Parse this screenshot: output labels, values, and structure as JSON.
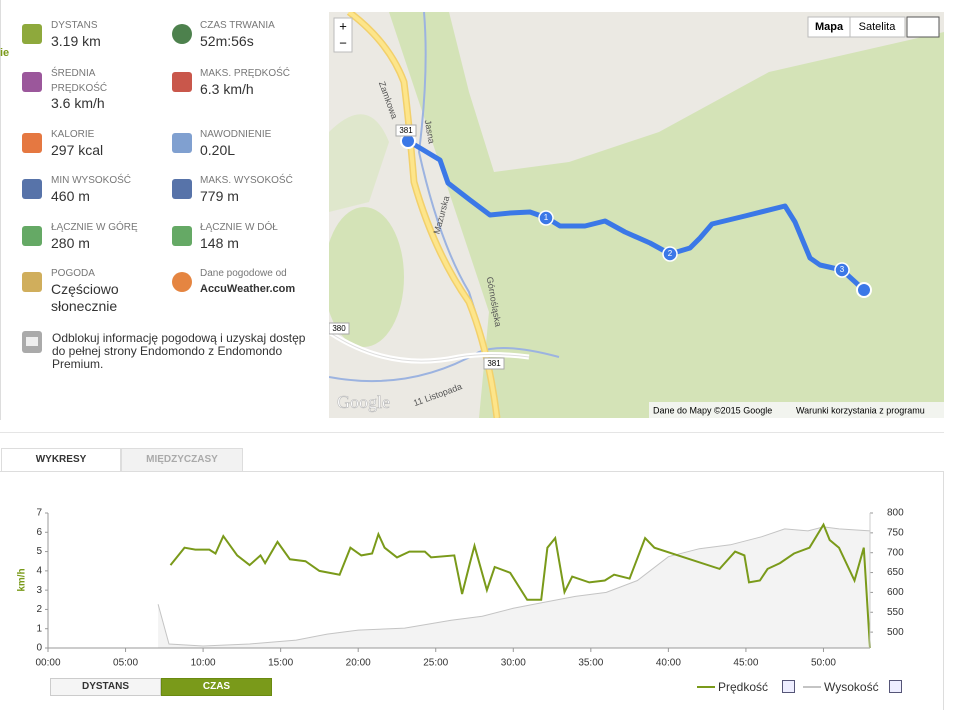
{
  "sidebar_fragment": "ie",
  "stats": [
    {
      "label": "DYSTANS",
      "value": "3.19 km"
    },
    {
      "label": "CZAS TRWANIA",
      "value": "52m:56s"
    },
    {
      "label": "ŚREDNIA PRĘDKOŚĆ",
      "value": "3.6 km/h"
    },
    {
      "label": "MAKS. PRĘDKOŚĆ",
      "value": "6.3 km/h"
    },
    {
      "label": "KALORIE",
      "value": "297 kcal"
    },
    {
      "label": "NAWODNIENIE",
      "value": "0.20L"
    },
    {
      "label": "MIN WYSOKOŚĆ",
      "value": "460 m"
    },
    {
      "label": "MAKS. WYSOKOŚĆ",
      "value": "779 m"
    },
    {
      "label": "ŁĄCZNIE W GÓRĘ",
      "value": "280 m"
    },
    {
      "label": "ŁĄCZNIE W DÓŁ",
      "value": "148 m"
    },
    {
      "label": "POGODA",
      "value": "Częściowo słonecznie"
    },
    {
      "label": "Dane pogodowe od",
      "value": "AccuWeather.com"
    }
  ],
  "promo": "Odblokuj informację pogodową i uzyskaj dostęp do pełnej strony Endomondo z Endomondo Premium.",
  "map": {
    "zoom_in": "+",
    "zoom_out": "−",
    "map_button": "Mapa",
    "satellite_button": "Satelita",
    "streets": [
      "Zamkowa",
      "Jasna",
      "Mazurska",
      "Górnośląska",
      "11 Listopada"
    ],
    "road_numbers": [
      "381",
      "380",
      "381"
    ],
    "markers": [
      "1",
      "2",
      "3"
    ],
    "logo": "Google",
    "attribution": "Dane do Mapy ©2015 Google",
    "terms": "Warunki korzystania z programu"
  },
  "tabs": [
    "WYKRESY",
    "MIĘDZYCZASY"
  ],
  "x_modes": [
    "DYSTANS",
    "CZAS"
  ],
  "chart_data": {
    "type": "line",
    "y_label": "km/h",
    "xlim": [
      0,
      53
    ],
    "xticks": [
      {
        "value": 0,
        "label": "00:00"
      },
      {
        "value": 5,
        "label": "05:00"
      },
      {
        "value": 10,
        "label": "10:00"
      },
      {
        "value": 15,
        "label": "15:00"
      },
      {
        "value": 20,
        "label": "20:00"
      },
      {
        "value": 25,
        "label": "25:00"
      },
      {
        "value": 30,
        "label": "30:00"
      },
      {
        "value": 35,
        "label": "35:00"
      },
      {
        "value": 40,
        "label": "40:00"
      },
      {
        "value": 45,
        "label": "45:00"
      },
      {
        "value": 50,
        "label": "50:00"
      }
    ],
    "ylim": [
      0,
      7
    ],
    "yticks": [
      0,
      1,
      2,
      3,
      4,
      5,
      6,
      7
    ],
    "y2lim": [
      460,
      800
    ],
    "y2ticks": [
      500,
      550,
      600,
      650,
      700,
      750,
      800
    ],
    "series": [
      {
        "name": "Wysokość",
        "color": "#c4c4c4",
        "axis": "y2",
        "x": [
          7.1,
          7.8,
          10,
          13,
          16,
          18,
          20,
          23,
          26,
          28,
          30,
          32,
          34,
          36,
          38,
          40,
          42,
          44,
          46,
          47.5,
          49,
          50,
          51,
          53
        ],
        "values": [
          570,
          470,
          465,
          470,
          480,
          495,
          505,
          510,
          530,
          540,
          560,
          575,
          590,
          600,
          630,
          690,
          710,
          720,
          740,
          760,
          755,
          765,
          760,
          755
        ]
      },
      {
        "name": "Prędkość",
        "color": "#7a9a1a",
        "x": [
          7.9,
          8.8,
          9.5,
          10.4,
          10.8,
          11.3,
          12.2,
          13.0,
          13.7,
          14.0,
          14.8,
          15.6,
          16.6,
          17.5,
          18.8,
          19.5,
          20.2,
          20.9,
          21.3,
          21.7,
          22.5,
          23.3,
          24.3,
          24.7,
          26.2,
          26.7,
          27.2,
          27.5,
          28.3,
          28.8,
          29.8,
          30.9,
          31.8,
          32.2,
          32.7,
          33.3,
          33.8,
          34.9,
          35.9,
          36.5,
          37.5,
          38.5,
          39.1,
          43.3,
          44.3,
          44.9,
          45.2,
          45.9,
          46.4,
          47.2,
          48.1,
          49.1,
          50.0,
          50.4,
          51.0,
          52.0,
          52.6,
          53.0
        ],
        "values": [
          4.3,
          5.2,
          5.1,
          5.1,
          4.9,
          5.8,
          4.8,
          4.3,
          4.8,
          4.4,
          5.5,
          4.6,
          4.5,
          4.0,
          3.8,
          5.2,
          4.8,
          4.9,
          5.9,
          5.2,
          4.7,
          5.0,
          5.0,
          4.7,
          4.8,
          2.8,
          4.4,
          5.3,
          3.0,
          4.2,
          3.9,
          2.5,
          2.5,
          5.2,
          5.7,
          2.9,
          3.7,
          3.4,
          3.5,
          3.8,
          3.6,
          5.7,
          5.2,
          4.1,
          5.0,
          4.8,
          3.4,
          3.5,
          4.1,
          4.4,
          4.9,
          5.2,
          6.4,
          5.6,
          5.2,
          3.5,
          5.2,
          0
        ]
      }
    ]
  }
}
